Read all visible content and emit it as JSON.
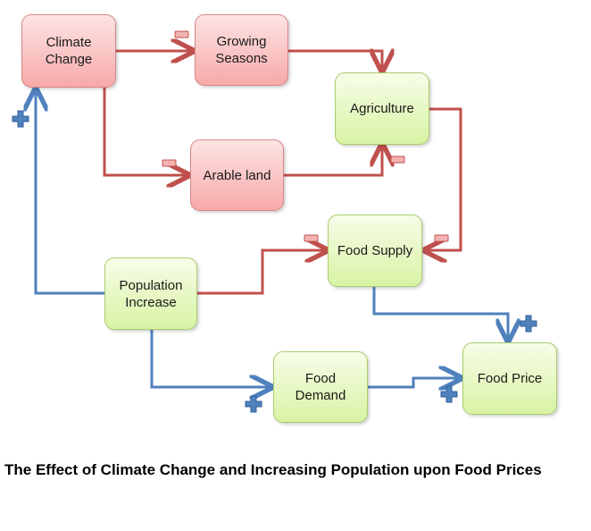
{
  "nodes": {
    "climate_change": "Climate\nChange",
    "growing_seasons": "Growing\nSeasons",
    "agriculture": "Agriculture",
    "arable_land": "Arable land",
    "food_supply": "Food Supply",
    "population_increase": "Population\nIncrease",
    "food_demand": "Food\nDemand",
    "food_price": "Food Price"
  },
  "caption": "The Effect of Climate Change and Increasing Population upon Food Prices",
  "colors": {
    "negative_link": "#c0504d",
    "positive_link": "#4f81bd",
    "negative_node_fill": "#f7a9a9",
    "positive_node_fill": "#d8f3a4"
  },
  "links": [
    {
      "from": "climate_change",
      "to": "growing_seasons",
      "polarity": "negative"
    },
    {
      "from": "climate_change",
      "to": "arable_land",
      "polarity": "negative"
    },
    {
      "from": "growing_seasons",
      "to": "agriculture",
      "polarity": "negative"
    },
    {
      "from": "arable_land",
      "to": "agriculture",
      "polarity": "negative"
    },
    {
      "from": "agriculture",
      "to": "food_supply",
      "polarity": "negative"
    },
    {
      "from": "population_increase",
      "to": "food_supply",
      "polarity": "negative"
    },
    {
      "from": "population_increase",
      "to": "climate_change",
      "polarity": "positive"
    },
    {
      "from": "population_increase",
      "to": "food_demand",
      "polarity": "positive"
    },
    {
      "from": "food_supply",
      "to": "food_price",
      "polarity": "positive"
    },
    {
      "from": "food_demand",
      "to": "food_price",
      "polarity": "positive"
    }
  ]
}
